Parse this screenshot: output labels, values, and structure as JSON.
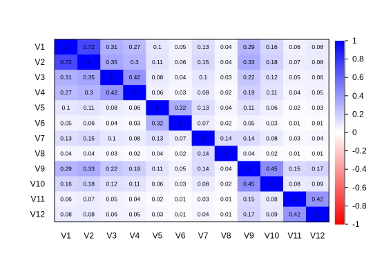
{
  "chart_data": {
    "type": "heatmap",
    "rows": [
      "V1",
      "V2",
      "V3",
      "V4",
      "V5",
      "V6",
      "V7",
      "V8",
      "V9",
      "V10",
      "V11",
      "V12"
    ],
    "columns": [
      "V1",
      "V2",
      "V3",
      "V4",
      "V5",
      "V6",
      "V7",
      "V8",
      "V9",
      "V10",
      "V11",
      "V12"
    ],
    "values": [
      [
        1,
        0.72,
        0.31,
        0.27,
        0.1,
        0.05,
        0.13,
        0.04,
        0.29,
        0.16,
        0.06,
        0.08
      ],
      [
        0.72,
        1,
        0.35,
        0.3,
        0.11,
        0.06,
        0.15,
        0.04,
        0.33,
        0.18,
        0.07,
        0.08
      ],
      [
        0.31,
        0.35,
        1,
        0.42,
        0.08,
        0.04,
        0.1,
        0.03,
        0.22,
        0.12,
        0.05,
        0.06
      ],
      [
        0.27,
        0.3,
        0.42,
        1,
        0.06,
        0.03,
        0.08,
        0.02,
        0.19,
        0.11,
        0.04,
        0.05
      ],
      [
        0.1,
        0.11,
        0.08,
        0.06,
        1,
        0.32,
        0.13,
        0.04,
        0.11,
        0.06,
        0.02,
        0.03
      ],
      [
        0.05,
        0.06,
        0.04,
        0.03,
        0.32,
        1,
        0.07,
        0.02,
        0.05,
        0.03,
        0.01,
        0.01
      ],
      [
        0.13,
        0.15,
        0.1,
        0.08,
        0.13,
        0.07,
        1,
        0.14,
        0.14,
        0.08,
        0.03,
        0.04
      ],
      [
        0.04,
        0.04,
        0.03,
        0.02,
        0.04,
        0.02,
        0.14,
        1,
        0.04,
        0.02,
        0.01,
        0.01
      ],
      [
        0.29,
        0.33,
        0.22,
        0.19,
        0.11,
        0.05,
        0.14,
        0.04,
        1,
        0.45,
        0.15,
        0.17
      ],
      [
        0.16,
        0.18,
        0.12,
        0.11,
        0.06,
        0.03,
        0.08,
        0.02,
        0.45,
        1,
        0.08,
        0.09
      ],
      [
        0.06,
        0.07,
        0.05,
        0.04,
        0.02,
        0.01,
        0.03,
        0.01,
        0.15,
        0.08,
        1,
        0.42
      ],
      [
        0.08,
        0.08,
        0.06,
        0.05,
        0.03,
        0.01,
        0.04,
        0.01,
        0.17,
        0.09,
        0.42,
        1
      ]
    ],
    "color_scale": {
      "min": -1,
      "max": 1,
      "low_color": "#ff0000",
      "mid_color": "#ffffff",
      "high_color": "#0000ff",
      "ticks": [
        1,
        0.8,
        0.6,
        0.4,
        0.2,
        0,
        -0.2,
        -0.4,
        -0.6,
        -0.8,
        -1
      ]
    },
    "title": "",
    "xlabel": "",
    "ylabel": "",
    "legend_placement": "right"
  }
}
